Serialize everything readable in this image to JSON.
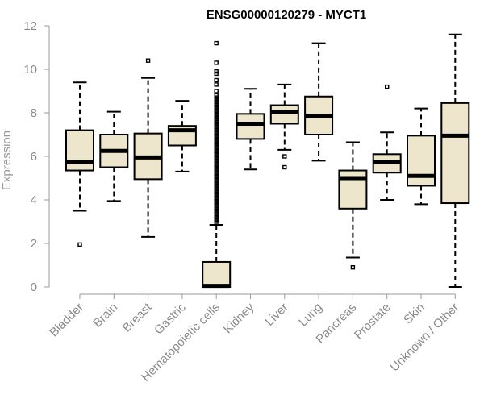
{
  "chart_data": {
    "type": "boxplot",
    "title": "ENSG00000120279 - MYCT1",
    "xlabel": "",
    "ylabel": "Expression",
    "ylim": [
      0,
      12
    ],
    "yticks": [
      0,
      2,
      4,
      6,
      8,
      10,
      12
    ],
    "colors": {
      "box_fill": "#ede5cc",
      "stroke": "#000000",
      "axis": "#999999"
    },
    "categories": [
      "Bladder",
      "Brain",
      "Breast",
      "Gastric",
      "Hematopoietic cells",
      "Kidney",
      "Liver",
      "Lung",
      "Pancreas",
      "Prostate",
      "Skin",
      "Unknown / Other"
    ],
    "boxes": [
      {
        "name": "Bladder",
        "min": 3.5,
        "q1": 5.35,
        "median": 5.75,
        "q3": 7.2,
        "max": 9.4,
        "outliers": [
          1.95
        ]
      },
      {
        "name": "Brain",
        "min": 3.95,
        "q1": 5.5,
        "median": 6.25,
        "q3": 7.0,
        "max": 8.05,
        "outliers": []
      },
      {
        "name": "Breast",
        "min": 2.3,
        "q1": 4.95,
        "median": 5.95,
        "q3": 7.05,
        "max": 9.6,
        "outliers": [
          10.4
        ]
      },
      {
        "name": "Gastric",
        "min": 5.3,
        "q1": 6.5,
        "median": 7.2,
        "q3": 7.4,
        "max": 8.55,
        "outliers": []
      },
      {
        "name": "Hematopoietic cells",
        "min": 0.0,
        "q1": 0.0,
        "median": 0.05,
        "q3": 1.15,
        "max": 2.85,
        "outliers": [
          3.0,
          3.1,
          3.2,
          3.3,
          3.4,
          3.5,
          3.6,
          3.7,
          3.8,
          3.9,
          4.0,
          4.1,
          4.2,
          4.3,
          4.4,
          4.5,
          4.6,
          4.7,
          4.8,
          4.9,
          5.0,
          5.1,
          5.2,
          5.3,
          5.4,
          5.5,
          5.6,
          5.7,
          5.8,
          5.9,
          6.0,
          6.1,
          6.2,
          6.3,
          6.4,
          6.5,
          6.6,
          6.7,
          6.8,
          6.9,
          7.0,
          7.1,
          7.2,
          7.3,
          7.4,
          7.5,
          7.6,
          7.7,
          7.8,
          7.9,
          8.0,
          8.1,
          8.2,
          8.3,
          8.4,
          8.5,
          8.6,
          8.7,
          8.8,
          9.0,
          9.3,
          9.5,
          9.8,
          9.9,
          10.3,
          11.2
        ]
      },
      {
        "name": "Kidney",
        "min": 5.4,
        "q1": 6.8,
        "median": 7.5,
        "q3": 7.95,
        "max": 9.1,
        "outliers": []
      },
      {
        "name": "Liver",
        "min": 6.3,
        "q1": 7.5,
        "median": 8.05,
        "q3": 8.35,
        "max": 9.3,
        "outliers": [
          6.0,
          5.5
        ]
      },
      {
        "name": "Lung",
        "min": 5.8,
        "q1": 7.0,
        "median": 7.85,
        "q3": 8.75,
        "max": 11.2,
        "outliers": []
      },
      {
        "name": "Pancreas",
        "min": 1.35,
        "q1": 3.6,
        "median": 5.0,
        "q3": 5.35,
        "max": 6.65,
        "outliers": [
          0.9
        ]
      },
      {
        "name": "Prostate",
        "min": 4.0,
        "q1": 5.25,
        "median": 5.75,
        "q3": 6.1,
        "max": 7.1,
        "outliers": [
          9.2
        ]
      },
      {
        "name": "Skin",
        "min": 3.8,
        "q1": 4.65,
        "median": 5.1,
        "q3": 6.95,
        "max": 8.2,
        "outliers": []
      },
      {
        "name": "Unknown / Other",
        "min": 0.0,
        "q1": 3.85,
        "median": 6.95,
        "q3": 8.45,
        "max": 11.6,
        "outliers": []
      }
    ]
  }
}
